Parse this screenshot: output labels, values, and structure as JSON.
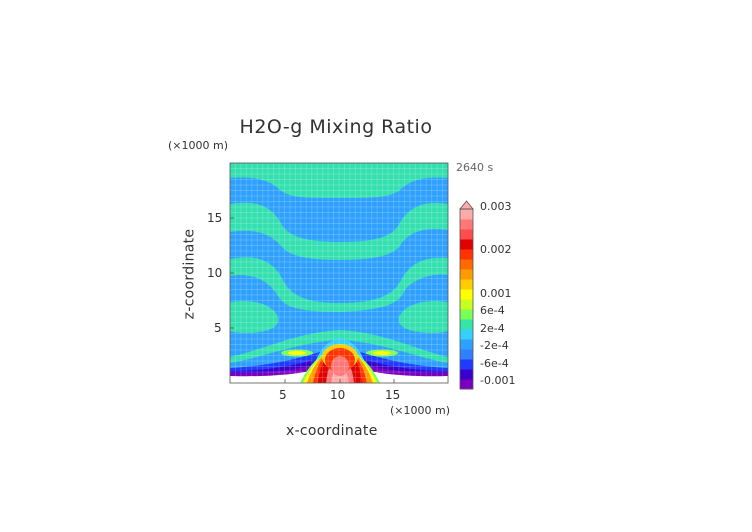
{
  "chart_data": {
    "type": "heatmap",
    "title": "H2O-g Mixing Ratio",
    "time_label": "2640 s",
    "xlabel": "x-coordinate",
    "ylabel": "z-coordinate",
    "x_unit": "(×1000 m)",
    "y_unit": "(×1000 m)",
    "xlim": [
      0,
      20
    ],
    "ylim": [
      0,
      20
    ],
    "x_ticks": [
      "5",
      "10",
      "15"
    ],
    "y_ticks": [
      "5",
      "10",
      "15"
    ],
    "colorbar": {
      "labels": [
        "0.003",
        "0.002",
        "0.001",
        "6e-4",
        "2e-4",
        "-2e-4",
        "-6e-4",
        "-0.001"
      ],
      "colors": [
        "#7a00bf",
        "#3b00cc",
        "#1f3bff",
        "#2f7fff",
        "#2ea0ff",
        "#35d0ff",
        "#33e6a8",
        "#7aff55",
        "#c8ff1e",
        "#ffff00",
        "#ffcc00",
        "#ff9900",
        "#ff6a00",
        "#ff3300",
        "#e00000",
        "#ff4d4d",
        "#ff7777",
        "#ffaaaa"
      ],
      "extend": "max"
    }
  }
}
